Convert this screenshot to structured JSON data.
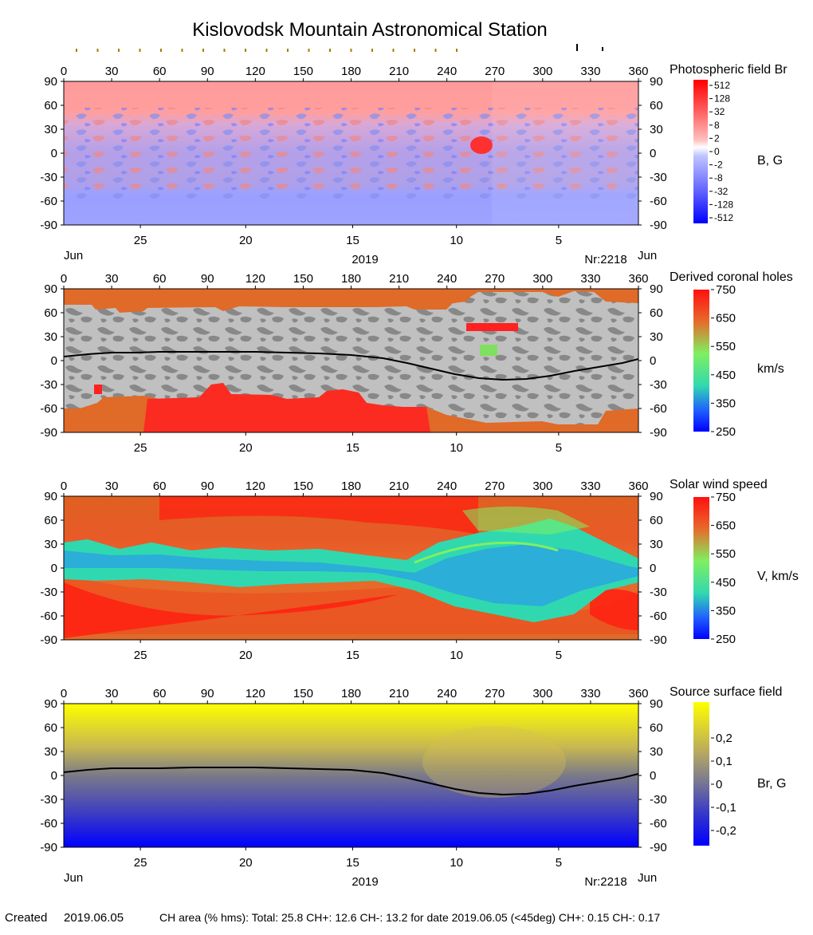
{
  "title": "Kislovodsk Mountain Astronomical Station",
  "lon_ticks": [
    "0",
    "30",
    "60",
    "90",
    "120",
    "150",
    "180",
    "210",
    "240",
    "270",
    "300",
    "330",
    "360"
  ],
  "lat_ticks": [
    "90",
    "60",
    "30",
    "0",
    "-30",
    "-60",
    "-90"
  ],
  "day_ticks": [
    {
      "label": "25",
      "lon": 48
    },
    {
      "label": "20",
      "lon": 114
    },
    {
      "label": "15",
      "lon": 181
    },
    {
      "label": "10",
      "lon": 246
    },
    {
      "label": "5",
      "lon": 310
    }
  ],
  "month_left": "Jun",
  "month_right": "Jun",
  "year": "2019",
  "rotation": "Nr:2218",
  "colors": {
    "neg": "#0000ff",
    "pos": "#ff0000",
    "grey_dark": "#858585",
    "grey_light": "#c0c0c0",
    "orange": "#e8682a"
  },
  "chart_data": [
    {
      "type": "heatmap",
      "title": "Photospheric field Br",
      "unit": "B, G",
      "x_range": [
        0,
        360
      ],
      "y_range": [
        -90,
        90
      ],
      "colorbar_ticks": [
        "512",
        "128",
        "32",
        "8",
        "2",
        "0",
        "-2",
        "-8",
        "-32",
        "-128",
        "-512"
      ]
    },
    {
      "type": "heatmap",
      "title": "Derived coronal holes",
      "unit": "km/s",
      "x_range": [
        0,
        360
      ],
      "y_range": [
        -90,
        90
      ],
      "colorbar_ticks": [
        "750",
        "650",
        "550",
        "450",
        "350",
        "250"
      ],
      "neutral_line": {
        "lon": [
          0,
          15,
          30,
          45,
          60,
          80,
          100,
          120,
          140,
          160,
          180,
          200,
          215,
          230,
          245,
          260,
          275,
          290,
          305,
          320,
          335,
          350,
          360
        ],
        "lat": [
          5,
          8,
          10,
          10,
          11,
          11,
          11,
          11,
          10,
          9,
          7,
          3,
          -3,
          -10,
          -17,
          -22,
          -24,
          -23,
          -19,
          -13,
          -8,
          -3,
          2
        ]
      }
    },
    {
      "type": "heatmap",
      "title": "Solar wind speed",
      "unit": "V, km/s",
      "x_range": [
        0,
        360
      ],
      "y_range": [
        -90,
        90
      ],
      "colorbar_ticks": [
        "750",
        "650",
        "550",
        "450",
        "350",
        "250"
      ]
    },
    {
      "type": "heatmap",
      "title": "Source surface field",
      "unit": "Br, G",
      "x_range": [
        0,
        360
      ],
      "y_range": [
        -90,
        90
      ],
      "colorbar_ticks": [
        "0,2",
        "0,1",
        "0",
        "-0,1",
        "-0,2"
      ],
      "neutral_line": {
        "lon": [
          0,
          15,
          30,
          45,
          60,
          80,
          100,
          120,
          140,
          160,
          180,
          200,
          215,
          230,
          245,
          260,
          275,
          290,
          305,
          320,
          335,
          350,
          360
        ],
        "lat": [
          4,
          7,
          9,
          9,
          9,
          10,
          10,
          10,
          9,
          8,
          7,
          3,
          -3,
          -10,
          -17,
          -22,
          -24,
          -23,
          -19,
          -13,
          -8,
          -3,
          2
        ]
      }
    }
  ],
  "footer": {
    "created_label": "Created",
    "created_date": "2019.06.05",
    "ch_area": "CH area (% hms): Total: 25.8 CH+: 12.6   CH-: 13.2 for date 2019.06.05 (<45deg) CH+: 0.15    CH-: 0.17"
  }
}
